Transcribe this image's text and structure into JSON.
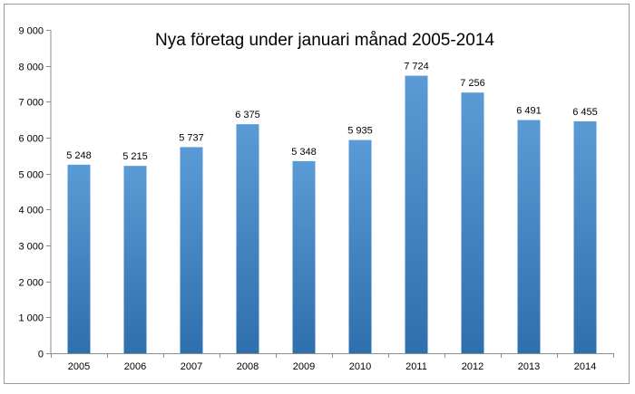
{
  "chart_data": {
    "type": "bar",
    "title": "Nya företag under januari månad 2005-2014",
    "xlabel": "",
    "ylabel": "",
    "categories": [
      "2005",
      "2006",
      "2007",
      "2008",
      "2009",
      "2010",
      "2011",
      "2012",
      "2013",
      "2014"
    ],
    "values": [
      5248,
      5215,
      5737,
      6375,
      5348,
      5935,
      7724,
      7256,
      6491,
      6455
    ],
    "data_labels": [
      "5 248",
      "5 215",
      "5 737",
      "6 375",
      "5 348",
      "5 935",
      "7 724",
      "7 256",
      "6 491",
      "6 455"
    ],
    "ylim": [
      0,
      9000
    ],
    "y_ticks": [
      0,
      1000,
      2000,
      3000,
      4000,
      5000,
      6000,
      7000,
      8000,
      9000
    ],
    "y_tick_labels": [
      "0",
      "1 000",
      "2 000",
      "3 000",
      "4 000",
      "5 000",
      "6 000",
      "7 000",
      "8 000",
      "9 000"
    ],
    "grid": false,
    "legend": "none",
    "bar_color_top": "#5b9bd5",
    "bar_color_bottom": "#2e6fad"
  }
}
